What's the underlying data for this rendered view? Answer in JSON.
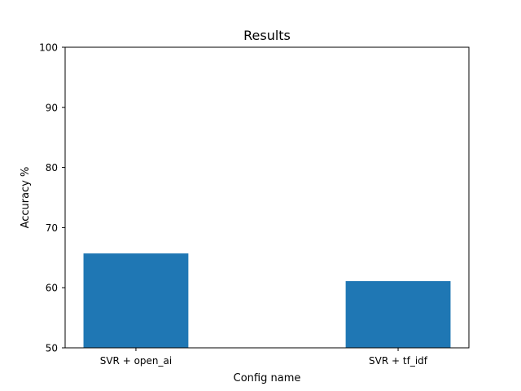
{
  "chart_data": {
    "type": "bar",
    "title": "Results",
    "xlabel": "Config name",
    "ylabel": "Accuracy %",
    "categories": [
      "SVR + open_ai",
      "SVR + tf_idf"
    ],
    "values": [
      65.7,
      61.1
    ],
    "ylim": [
      50,
      100
    ],
    "yticks": [
      50,
      60,
      70,
      80,
      90,
      100
    ],
    "bar_color": "#1f77b4",
    "grid": false,
    "legend": "none"
  }
}
